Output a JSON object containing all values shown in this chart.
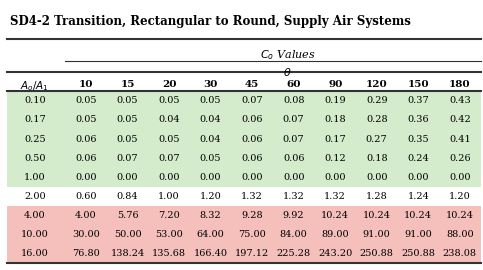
{
  "title": "SD4-2 Transition, Rectangular to Round, Supply Air Systems",
  "col_labels": [
    "10",
    "15",
    "20",
    "30",
    "45",
    "60",
    "90",
    "120",
    "150",
    "180"
  ],
  "row_labels": [
    "0.10",
    "0.17",
    "0.25",
    "0.50",
    "1.00",
    "2.00",
    "4.00",
    "10.00",
    "16.00"
  ],
  "data": [
    [
      "0.05",
      "0.05",
      "0.05",
      "0.05",
      "0.07",
      "0.08",
      "0.19",
      "0.29",
      "0.37",
      "0.43"
    ],
    [
      "0.05",
      "0.05",
      "0.04",
      "0.04",
      "0.06",
      "0.07",
      "0.18",
      "0.28",
      "0.36",
      "0.42"
    ],
    [
      "0.06",
      "0.05",
      "0.05",
      "0.04",
      "0.06",
      "0.07",
      "0.17",
      "0.27",
      "0.35",
      "0.41"
    ],
    [
      "0.06",
      "0.07",
      "0.07",
      "0.05",
      "0.06",
      "0.06",
      "0.12",
      "0.18",
      "0.24",
      "0.26"
    ],
    [
      "0.00",
      "0.00",
      "0.00",
      "0.00",
      "0.00",
      "0.00",
      "0.00",
      "0.00",
      "0.00",
      "0.00"
    ],
    [
      "0.60",
      "0.84",
      "1.00",
      "1.20",
      "1.32",
      "1.32",
      "1.32",
      "1.28",
      "1.24",
      "1.20"
    ],
    [
      "4.00",
      "5.76",
      "7.20",
      "8.32",
      "9.28",
      "9.92",
      "10.24",
      "10.24",
      "10.24",
      "10.24"
    ],
    [
      "30.00",
      "50.00",
      "53.00",
      "64.00",
      "75.00",
      "84.00",
      "89.00",
      "91.00",
      "91.00",
      "88.00"
    ],
    [
      "76.80",
      "138.24",
      "135.68",
      "166.40",
      "197.12",
      "225.28",
      "243.20",
      "250.88",
      "250.88",
      "238.08"
    ]
  ],
  "row_colors": [
    "#d4eccc",
    "#d4eccc",
    "#d4eccc",
    "#d4eccc",
    "#d4eccc",
    "#ffffff",
    "#f5c0bb",
    "#f5c0bb",
    "#f5c0bb"
  ],
  "background": "#ffffff",
  "title_fontsize": 8.5,
  "header_fontsize": 7.5,
  "cell_fontsize": 7.0,
  "line_color": "#333333"
}
